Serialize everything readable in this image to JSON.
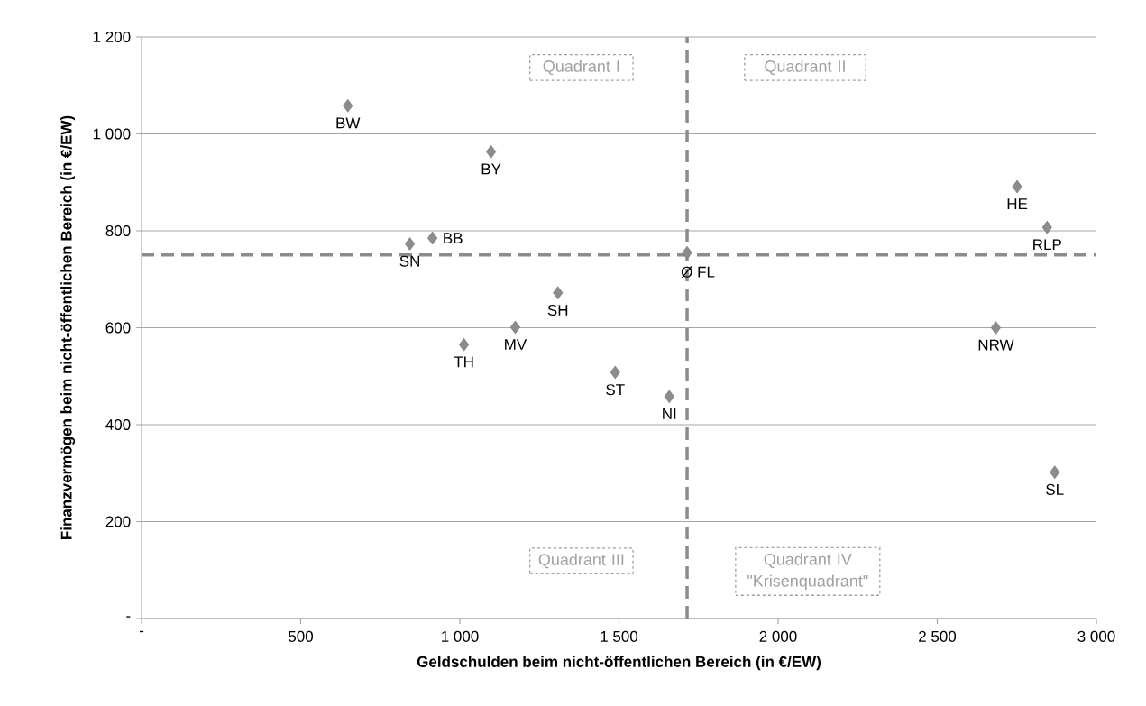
{
  "chart_data": {
    "type": "scatter",
    "xlabel": "Geldschulden beim nicht-öffentlichen Bereich (in €/EW)",
    "ylabel": "Finanzvermögen beim nicht-öffentlichen Bereich (in €/EW)",
    "x": [
      648,
      1098,
      843,
      914,
      1308,
      1174,
      1013,
      1488,
      1658,
      1714,
      2751,
      2845,
      2684,
      2869
    ],
    "values": [
      1058,
      963,
      773,
      785,
      672,
      601,
      565,
      508,
      458,
      755,
      891,
      807,
      600,
      302
    ],
    "color": "#8c8c8c",
    "marker": "diamond",
    "xlim": [
      0,
      3000
    ],
    "ylim": [
      0,
      1200
    ],
    "xticks": [
      {
        "value": 0,
        "label": "-"
      },
      500,
      {
        "value": 1000,
        "label": "1 000"
      },
      {
        "value": 1500,
        "label": "1 500"
      },
      {
        "value": 2000,
        "label": "2 000"
      },
      {
        "value": 2500,
        "label": "2 500"
      },
      {
        "value": 3000,
        "label": "3 000"
      }
    ],
    "yticks": [
      {
        "value": 0,
        "label": "-"
      },
      200,
      400,
      600,
      800,
      {
        "value": 1000,
        "label": "1 000"
      },
      {
        "value": 1200,
        "label": "1 200"
      }
    ],
    "grid": "y",
    "ref_lines": [
      {
        "axis": "x",
        "value": 1714,
        "color": "#8c8c8c",
        "line_style": "dashed"
      },
      {
        "axis": "y",
        "value": 750,
        "color": "#8c8c8c",
        "line_style": "dashed"
      }
    ],
    "annotations": [
      "Quadrant I",
      "Quadrant II",
      "Quadrant III",
      "Quadrant IV \"Krisenquadrant\"",
      {
        "text": "BW",
        "x": 648,
        "y": 1058
      },
      {
        "text": "BY",
        "x": 1098,
        "y": 963
      },
      {
        "text": "SN",
        "x": 843,
        "y": 773
      },
      {
        "text": "BB",
        "x": 914,
        "y": 785
      },
      {
        "text": "SH",
        "x": 1308,
        "y": 672
      },
      {
        "text": "MV",
        "x": 1174,
        "y": 601
      },
      {
        "text": "TH",
        "x": 1013,
        "y": 565
      },
      {
        "text": "ST",
        "x": 1488,
        "y": 508
      },
      {
        "text": "NI",
        "x": 1658,
        "y": 458
      },
      {
        "text": "Ø FL",
        "x": 1714,
        "y": 755
      },
      {
        "text": "HE",
        "x": 2751,
        "y": 891
      },
      {
        "text": "RLP",
        "x": 2845,
        "y": 807
      },
      {
        "text": "NRW",
        "x": 2684,
        "y": 600
      },
      {
        "text": "SL",
        "x": 2869,
        "y": 302
      }
    ]
  }
}
